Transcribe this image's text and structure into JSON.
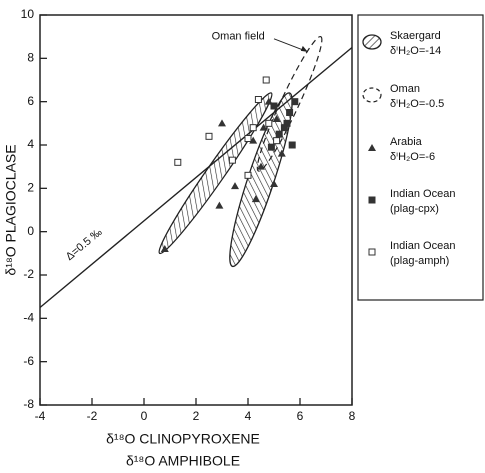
{
  "chart_data": {
    "type": "scatter",
    "xlabel": "δ¹⁸O CLINOPYROXENE",
    "xlabel2": "δ¹⁸O AMPHIBOLE",
    "ylabel": "δ¹⁸O PLAGIOCLASE",
    "xlim": [
      -4,
      8
    ],
    "ylim": [
      -8,
      10
    ],
    "xticks": [
      -4,
      -2,
      0,
      2,
      4,
      6,
      8
    ],
    "yticks": [
      -8,
      -6,
      -4,
      -2,
      0,
      2,
      4,
      6,
      8,
      10
    ],
    "reference_line": {
      "label": "Δ=0.5 ‰",
      "offset": 0.5
    },
    "annotations": [
      "Oman field"
    ],
    "fields": [
      {
        "name": "Skaergard",
        "note": "δⁱH₂O=-14",
        "style": "hatched"
      },
      {
        "name": "Oman",
        "note": "δⁱH₂O=-0.5",
        "style": "dashed"
      }
    ],
    "series": [
      {
        "name": "Arabia",
        "note": "δⁱH₂O=-6",
        "marker": "triangle",
        "color": "#333333",
        "x": [
          0.8,
          2.9,
          3.0,
          3.5,
          4.3,
          5.0,
          4.2,
          4.5,
          5.1,
          4.8,
          5.3,
          4.6
        ],
        "y": [
          -0.8,
          1.2,
          5.0,
          2.1,
          1.5,
          2.2,
          4.2,
          3.0,
          5.2,
          6.0,
          3.6,
          4.8
        ]
      },
      {
        "name": "Indian Ocean",
        "note": "(plag-cpx)",
        "marker": "filled-square",
        "color": "#333333",
        "x": [
          4.9,
          5.2,
          5.5,
          5.6,
          5.8,
          5.4,
          5.7,
          5.0
        ],
        "y": [
          3.9,
          4.5,
          5.0,
          5.5,
          6.0,
          4.8,
          4.0,
          5.8
        ]
      },
      {
        "name": "Indian Ocean",
        "note": "(plag-amph)",
        "marker": "open-square",
        "color": "#333333",
        "x": [
          1.3,
          2.5,
          3.4,
          4.0,
          4.4,
          4.7,
          5.1,
          4.8,
          4.2,
          4.0
        ],
        "y": [
          3.2,
          4.4,
          3.3,
          4.3,
          6.1,
          7.0,
          4.2,
          5.0,
          4.8,
          2.6
        ]
      }
    ]
  }
}
